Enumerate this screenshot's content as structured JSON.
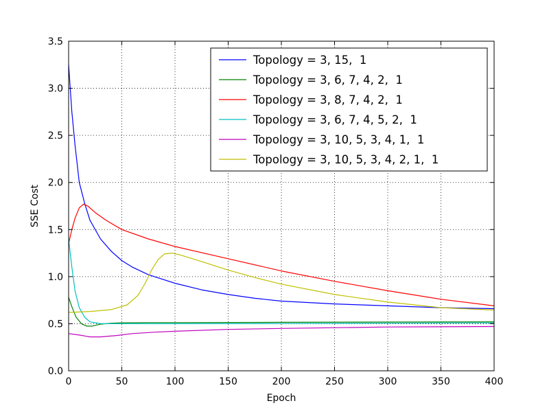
{
  "chart_data": {
    "type": "line",
    "xlabel": "Epoch",
    "ylabel": "SSE Cost",
    "xlim": [
      0,
      400
    ],
    "ylim": [
      0.0,
      3.5
    ],
    "xticks": [
      0,
      50,
      100,
      150,
      200,
      250,
      300,
      350,
      400
    ],
    "yticks": [
      0.0,
      0.5,
      1.0,
      1.5,
      2.0,
      2.5,
      3.0,
      3.5
    ],
    "xtick_labels": [
      "0",
      "50",
      "100",
      "150",
      "200",
      "250",
      "300",
      "350",
      "400"
    ],
    "ytick_labels": [
      "0.0",
      "0.5",
      "1.0",
      "1.5",
      "2.0",
      "2.5",
      "3.0",
      "3.5"
    ],
    "grid": true,
    "legend_position": "top-right",
    "series": [
      {
        "name": "Topology = 3, 15,  1",
        "color": "#0000ff",
        "points": [
          [
            0,
            3.25
          ],
          [
            3,
            2.75
          ],
          [
            6,
            2.4
          ],
          [
            10,
            2.0
          ],
          [
            15,
            1.78
          ],
          [
            20,
            1.6
          ],
          [
            30,
            1.4
          ],
          [
            40,
            1.27
          ],
          [
            50,
            1.17
          ],
          [
            60,
            1.1
          ],
          [
            75,
            1.02
          ],
          [
            100,
            0.93
          ],
          [
            125,
            0.86
          ],
          [
            150,
            0.81
          ],
          [
            175,
            0.77
          ],
          [
            200,
            0.74
          ],
          [
            250,
            0.71
          ],
          [
            300,
            0.69
          ],
          [
            350,
            0.67
          ],
          [
            400,
            0.66
          ]
        ]
      },
      {
        "name": "Topology = 3, 6, 7, 4, 2,  1",
        "color": "#008000",
        "points": [
          [
            0,
            0.78
          ],
          [
            3,
            0.68
          ],
          [
            7,
            0.57
          ],
          [
            12,
            0.5
          ],
          [
            17,
            0.475
          ],
          [
            22,
            0.475
          ],
          [
            30,
            0.495
          ],
          [
            40,
            0.505
          ],
          [
            50,
            0.51
          ],
          [
            75,
            0.512
          ],
          [
            100,
            0.512
          ],
          [
            200,
            0.515
          ],
          [
            300,
            0.518
          ],
          [
            400,
            0.52
          ]
        ]
      },
      {
        "name": "Topology = 3, 8, 7, 4, 2,  1",
        "color": "#ff0000",
        "points": [
          [
            0,
            1.35
          ],
          [
            3,
            1.5
          ],
          [
            6,
            1.62
          ],
          [
            10,
            1.73
          ],
          [
            14,
            1.77
          ],
          [
            18,
            1.75
          ],
          [
            25,
            1.68
          ],
          [
            35,
            1.6
          ],
          [
            50,
            1.5
          ],
          [
            75,
            1.4
          ],
          [
            100,
            1.32
          ],
          [
            150,
            1.19
          ],
          [
            200,
            1.06
          ],
          [
            250,
            0.95
          ],
          [
            300,
            0.85
          ],
          [
            350,
            0.76
          ],
          [
            400,
            0.69
          ]
        ]
      },
      {
        "name": "Topology = 3, 6, 7, 4, 5, 2,  1",
        "color": "#00bfbf",
        "points": [
          [
            0,
            1.4
          ],
          [
            3,
            1.1
          ],
          [
            6,
            0.85
          ],
          [
            10,
            0.67
          ],
          [
            15,
            0.57
          ],
          [
            20,
            0.52
          ],
          [
            30,
            0.5
          ],
          [
            50,
            0.5
          ],
          [
            100,
            0.5
          ],
          [
            200,
            0.502
          ],
          [
            300,
            0.505
          ],
          [
            400,
            0.51
          ]
        ]
      },
      {
        "name": "Topology = 3, 10, 5, 3, 4, 1,  1",
        "color": "#bf00bf",
        "points": [
          [
            0,
            0.395
          ],
          [
            10,
            0.38
          ],
          [
            20,
            0.36
          ],
          [
            30,
            0.36
          ],
          [
            45,
            0.375
          ],
          [
            60,
            0.395
          ],
          [
            80,
            0.41
          ],
          [
            100,
            0.42
          ],
          [
            150,
            0.44
          ],
          [
            200,
            0.45
          ],
          [
            300,
            0.465
          ],
          [
            400,
            0.47
          ]
        ]
      },
      {
        "name": "Topology = 3, 10, 5, 3, 4, 2, 1,  1",
        "color": "#bfbf00",
        "points": [
          [
            0,
            0.62
          ],
          [
            20,
            0.63
          ],
          [
            40,
            0.65
          ],
          [
            55,
            0.7
          ],
          [
            65,
            0.8
          ],
          [
            72,
            0.93
          ],
          [
            78,
            1.07
          ],
          [
            84,
            1.18
          ],
          [
            90,
            1.24
          ],
          [
            97,
            1.25
          ],
          [
            105,
            1.23
          ],
          [
            125,
            1.16
          ],
          [
            150,
            1.07
          ],
          [
            175,
            0.99
          ],
          [
            200,
            0.92
          ],
          [
            250,
            0.81
          ],
          [
            300,
            0.73
          ],
          [
            350,
            0.67
          ],
          [
            400,
            0.645
          ]
        ]
      }
    ]
  }
}
